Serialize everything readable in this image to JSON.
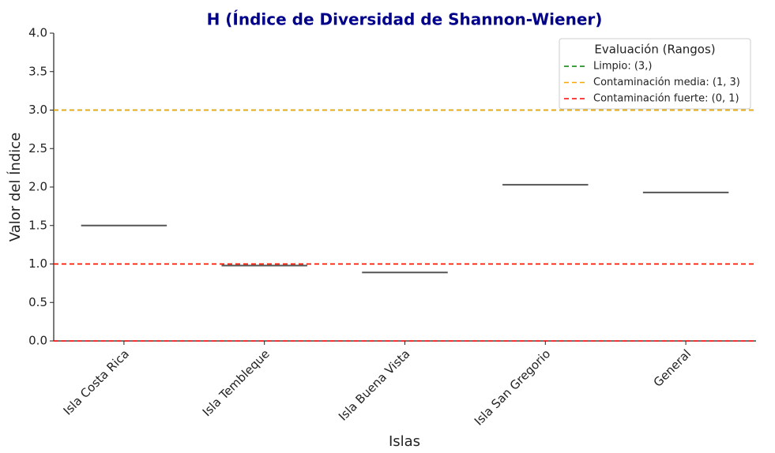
{
  "chart_data": {
    "type": "box",
    "title": "H (Índice de Diversidad de Shannon-Wiener)",
    "x_label": "Islas",
    "y_label": "Valor del Índice",
    "categories": [
      "Isla Costa Rica",
      "Isla Tembleque",
      "Isla Buena Vista",
      "Isla San Gregorio",
      "General"
    ],
    "values": [
      1.5,
      0.98,
      0.89,
      2.03,
      1.93
    ],
    "color": "#555555",
    "ylim": [
      0,
      4
    ],
    "yticks": [
      {
        "value": 0,
        "label": "0.0"
      },
      0.5,
      {
        "value": 1,
        "label": "1.0"
      },
      1.5,
      {
        "value": 2,
        "label": "2.0"
      },
      2.5,
      {
        "value": 3,
        "label": "3.0"
      },
      3.5,
      {
        "value": 4,
        "label": "4.0"
      }
    ],
    "reference_lines": {
      "legend_title": "Evaluación (Rangos)",
      "legend_position": "upper right",
      "series": [
        {
          "name": "Limpio: (3,)",
          "color": "#008000",
          "values": [
            3
          ]
        },
        {
          "name": "Contaminación media: (1, 3)",
          "color": "#ffa500",
          "values": [
            1,
            3
          ]
        },
        {
          "name": "Contaminación fuerte: (0, 1)",
          "color": "#ff0000",
          "values": [
            0,
            1
          ]
        }
      ]
    }
  }
}
